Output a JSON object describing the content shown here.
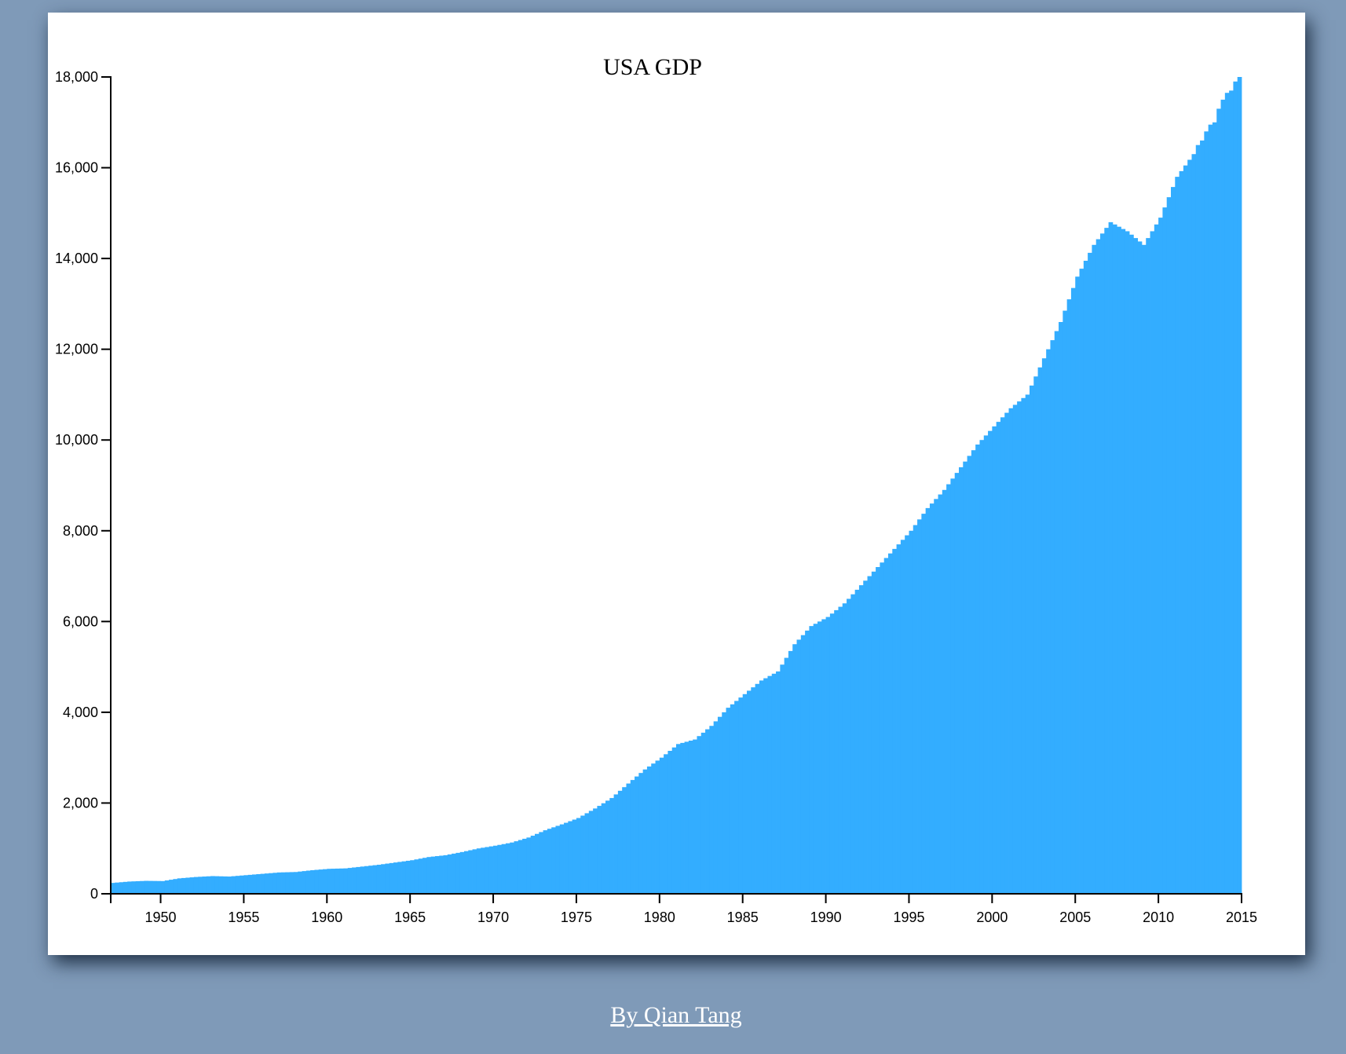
{
  "footer": {
    "author_link": "By Qian Tang"
  },
  "colors": {
    "bar": "#33adff",
    "background": "#7f9ab8",
    "card": "#ffffff"
  },
  "chart_data": {
    "type": "bar",
    "title": "USA GDP",
    "xlabel": "",
    "ylabel": "",
    "grid": false,
    "x_range": [
      1947,
      2015
    ],
    "ylim": [
      0,
      18000
    ],
    "x_ticks": [
      "1950",
      "1955",
      "1960",
      "1965",
      "1970",
      "1975",
      "1980",
      "1985",
      "1990",
      "1995",
      "2000",
      "2005",
      "2010",
      "2015"
    ],
    "y_ticks": [
      "0",
      "2,000",
      "4,000",
      "6,000",
      "8,000",
      "10,000",
      "12,000",
      "14,000",
      "16,000",
      "18,000"
    ],
    "series": [
      {
        "x": [
          1947,
          1948,
          1949,
          1950,
          1951,
          1952,
          1953,
          1954,
          1955,
          1956,
          1957,
          1958,
          1959,
          1960,
          1961,
          1962,
          1963,
          1964,
          1965,
          1966,
          1967,
          1968,
          1969,
          1970,
          1971,
          1972,
          1973,
          1974,
          1975,
          1976,
          1977,
          1978,
          1979,
          1980,
          1981,
          1982,
          1983,
          1984,
          1985,
          1986,
          1987,
          1988,
          1989,
          1990,
          1991,
          1992,
          1993,
          1994,
          1995,
          1996,
          1997,
          1998,
          1999,
          2000,
          2001,
          2002,
          2003,
          2004,
          2005,
          2006,
          2007,
          2008,
          2009,
          2010,
          2011,
          2012
        ],
        "values": [
          240,
          270,
          285,
          280,
          340,
          370,
          390,
          380,
          410,
          440,
          470,
          480,
          520,
          550,
          560,
          600,
          640,
          690,
          740,
          810,
          850,
          920,
          1000,
          1060,
          1130,
          1240,
          1400,
          1530,
          1670,
          1880,
          2110,
          2430,
          2740,
          3000,
          3300,
          3400,
          3700,
          4100,
          4400,
          4700,
          4900,
          5500,
          5900,
          6100,
          6400,
          6800,
          7200,
          7600,
          8000,
          8500,
          8900,
          9400,
          9900,
          10300,
          10700,
          11000,
          11800,
          12600,
          13600,
          14300,
          14800,
          14600,
          14300,
          14900,
          15800,
          16300
        ]
      },
      {
        "x": [
          2012.0,
          2012.25,
          2012.5,
          2012.75,
          2013.0,
          2013.25,
          2013.5,
          2013.75,
          2014.0,
          2014.25,
          2014.5,
          2014.75,
          2015.0
        ],
        "values": [
          16300,
          16500,
          16600,
          16800,
          16950,
          17000,
          17300,
          17500,
          17650,
          17700,
          17900,
          18000,
          18050
        ]
      }
    ]
  }
}
